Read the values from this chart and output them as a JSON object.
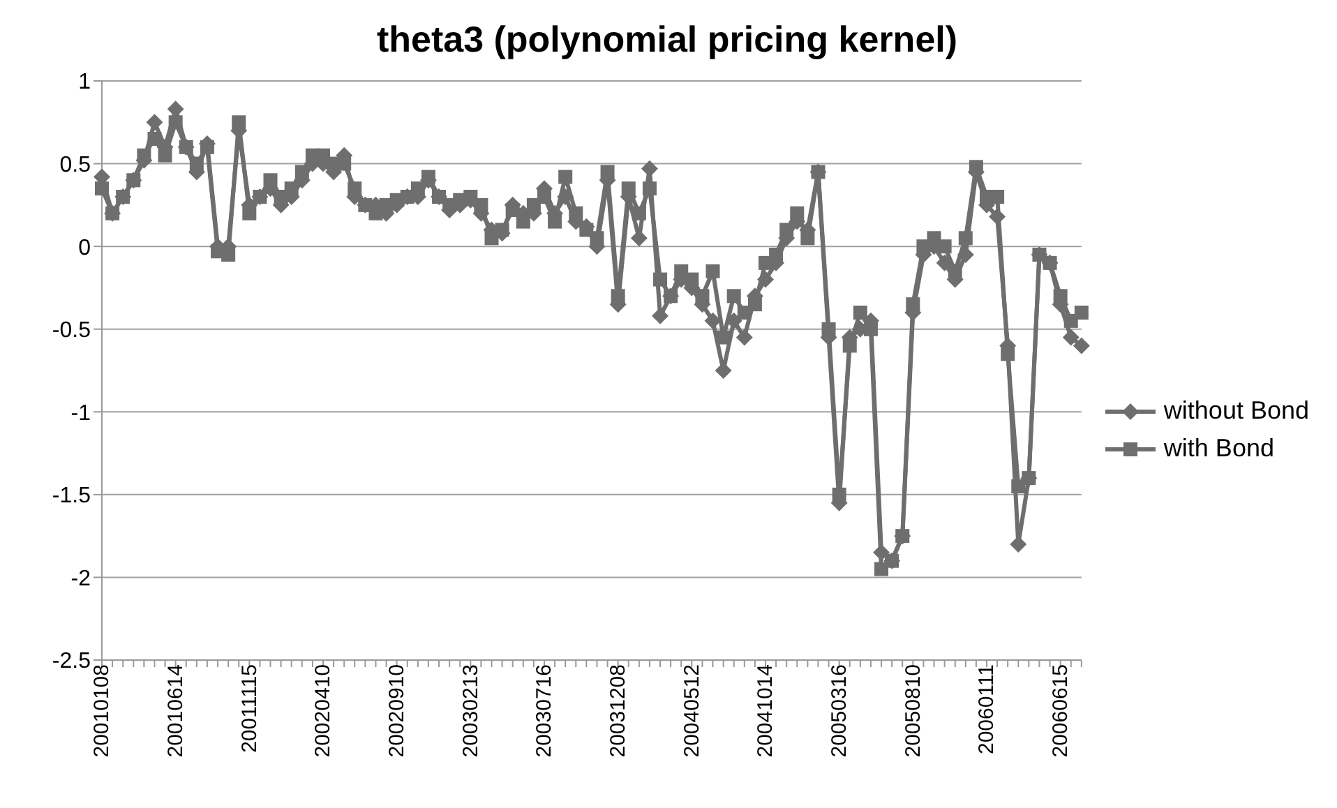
{
  "chart_data": {
    "type": "line",
    "title": "theta3 (polynomial pricing kernel)",
    "categories": [
      "20010108",
      null,
      null,
      null,
      null,
      null,
      null,
      "20010614",
      null,
      null,
      null,
      null,
      null,
      null,
      "20011115",
      null,
      null,
      null,
      null,
      null,
      null,
      "20020410",
      null,
      null,
      null,
      null,
      null,
      null,
      "20020910",
      null,
      null,
      null,
      null,
      null,
      null,
      "20030213",
      null,
      null,
      null,
      null,
      null,
      null,
      "20030716",
      null,
      null,
      null,
      null,
      null,
      null,
      "20031208",
      null,
      null,
      null,
      null,
      null,
      null,
      "20040512",
      null,
      null,
      null,
      null,
      null,
      null,
      "20041014",
      null,
      null,
      null,
      null,
      null,
      null,
      "20050316",
      null,
      null,
      null,
      null,
      null,
      null,
      "20050810",
      null,
      null,
      null,
      null,
      null,
      null,
      "20060111",
      null,
      null,
      null,
      null,
      null,
      null,
      "20060615",
      null,
      null
    ],
    "series": [
      {
        "name": "without Bond",
        "color": "#6e6e6e",
        "marker": "diamond",
        "values": [
          0.42,
          0.2,
          0.3,
          0.4,
          0.52,
          0.75,
          0.6,
          0.83,
          0.6,
          0.45,
          0.62,
          0,
          0,
          0.7,
          0.25,
          0.3,
          0.35,
          0.25,
          0.3,
          0.4,
          0.5,
          0.5,
          0.45,
          0.55,
          0.3,
          0.25,
          0.25,
          0.2,
          0.25,
          0.3,
          0.3,
          0.4,
          0.3,
          0.22,
          0.25,
          0.28,
          0.2,
          0.1,
          0.08,
          0.25,
          0.2,
          0.2,
          0.35,
          0.2,
          0.3,
          0.15,
          0.12,
          0,
          0.4,
          -0.35,
          0.3,
          0.05,
          0.47,
          -0.42,
          -0.3,
          -0.2,
          -0.25,
          -0.35,
          -0.45,
          -0.75,
          -0.45,
          -0.55,
          -0.3,
          -0.2,
          -0.1,
          0.05,
          0.15,
          0.1,
          0.45,
          -0.55,
          -1.55,
          -0.55,
          -0.5,
          -0.45,
          -1.85,
          -1.9,
          -1.75,
          -0.4,
          -0.05,
          0,
          -0.1,
          -0.2,
          -0.05,
          0.45,
          0.25,
          0.18,
          -0.6,
          -1.8,
          -1.4,
          -0.05,
          -0.1,
          -0.35,
          -0.55,
          -0.6
        ]
      },
      {
        "name": "with Bond",
        "color": "#6e6e6e",
        "marker": "square",
        "values": [
          0.35,
          0.2,
          0.3,
          0.4,
          0.55,
          0.65,
          0.55,
          0.75,
          0.6,
          0.5,
          0.6,
          -0.03,
          -0.05,
          0.75,
          0.2,
          0.3,
          0.4,
          0.3,
          0.35,
          0.45,
          0.55,
          0.55,
          0.5,
          0.5,
          0.35,
          0.25,
          0.2,
          0.25,
          0.28,
          0.3,
          0.35,
          0.42,
          0.3,
          0.25,
          0.28,
          0.3,
          0.25,
          0.05,
          0.1,
          0.22,
          0.15,
          0.25,
          0.3,
          0.15,
          0.42,
          0.2,
          0.1,
          0.05,
          0.45,
          -0.3,
          0.35,
          0.2,
          0.35,
          -0.2,
          -0.3,
          -0.15,
          -0.2,
          -0.3,
          -0.15,
          -0.55,
          -0.3,
          -0.4,
          -0.35,
          -0.1,
          -0.05,
          0.1,
          0.2,
          0.05,
          0.45,
          -0.5,
          -1.5,
          -0.6,
          -0.4,
          -0.5,
          -1.95,
          -1.9,
          -1.75,
          -0.35,
          0,
          0.05,
          0,
          -0.15,
          0.05,
          0.48,
          0.3,
          0.3,
          -0.65,
          -1.45,
          -1.4,
          -0.05,
          -0.1,
          -0.3,
          -0.45,
          -0.4
        ]
      }
    ],
    "ylim": [
      -2.5,
      1
    ],
    "yticks": [
      -2.5,
      -2,
      -1.5,
      -1,
      -0.5,
      0,
      0.5,
      1
    ],
    "grid": "y",
    "legend": "right",
    "line_style": "solid"
  }
}
